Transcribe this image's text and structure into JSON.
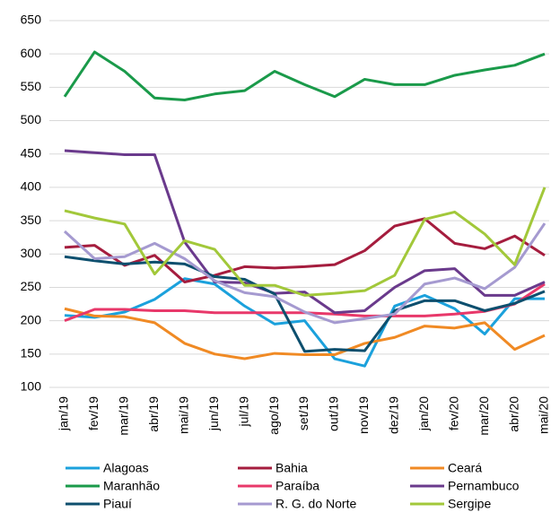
{
  "chart_data": {
    "type": "line",
    "categories": [
      "jan/19",
      "fev/19",
      "mar/19",
      "abr/19",
      "mai/19",
      "jun/19",
      "jul/19",
      "ago/19",
      "set/19",
      "out/19",
      "nov/19",
      "dez/19",
      "jan/20",
      "fev/20",
      "mar/20",
      "abr/20",
      "mai/20"
    ],
    "ylim": [
      100,
      650
    ],
    "yticks": [
      100,
      150,
      200,
      250,
      300,
      350,
      400,
      450,
      500,
      550,
      600,
      650
    ],
    "grid": true,
    "series": [
      {
        "name": "Alagoas",
        "color": "#1ba1dc",
        "values": [
          208,
          205,
          213,
          232,
          263,
          255,
          222,
          195,
          200,
          143,
          132,
          222,
          238,
          218,
          180,
          233,
          233
        ]
      },
      {
        "name": "Bahia",
        "color": "#a51d3e",
        "values": [
          310,
          313,
          283,
          298,
          258,
          268,
          281,
          279,
          281,
          284,
          305,
          342,
          353,
          316,
          308,
          327,
          298
        ]
      },
      {
        "name": "Ceará",
        "color": "#f08a24",
        "values": [
          218,
          207,
          206,
          197,
          166,
          150,
          143,
          151,
          149,
          149,
          166,
          175,
          192,
          189,
          197,
          157,
          178
        ]
      },
      {
        "name": "Maranhão",
        "color": "#1a9a4a",
        "values": [
          536,
          603,
          574,
          534,
          531,
          540,
          545,
          574,
          554,
          536,
          562,
          554,
          554,
          568,
          576,
          583,
          600
        ]
      },
      {
        "name": "Paraíba",
        "color": "#e8386a",
        "values": [
          200,
          217,
          217,
          215,
          215,
          212,
          212,
          212,
          212,
          210,
          207,
          207,
          207,
          210,
          214,
          225,
          255
        ]
      },
      {
        "name": "Pernambuco",
        "color": "#6a3a8c",
        "values": [
          455,
          452,
          449,
          449,
          318,
          258,
          257,
          241,
          243,
          212,
          215,
          250,
          275,
          278,
          238,
          238,
          258
        ]
      },
      {
        "name": "Piauí",
        "color": "#0d4f6e",
        "values": [
          296,
          290,
          285,
          288,
          285,
          266,
          262,
          240,
          154,
          157,
          155,
          215,
          230,
          230,
          215,
          226,
          244
        ]
      },
      {
        "name": "R. G. do Norte",
        "color": "#a59ad0",
        "values": [
          334,
          293,
          296,
          316,
          293,
          260,
          242,
          236,
          213,
          197,
          203,
          210,
          255,
          264,
          248,
          280,
          346
        ]
      },
      {
        "name": "Sergipe",
        "color": "#a2c83a",
        "values": [
          365,
          354,
          345,
          270,
          320,
          307,
          253,
          253,
          238,
          241,
          245,
          268,
          352,
          363,
          330,
          284,
          400
        ]
      }
    ]
  }
}
